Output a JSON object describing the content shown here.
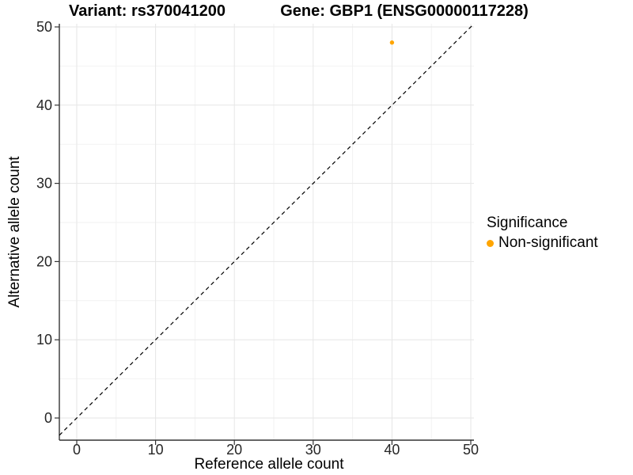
{
  "chart_data": {
    "type": "scatter",
    "titles": [
      "Variant: rs370041200",
      "Gene: GBP1 (ENSG00000117228)"
    ],
    "xlabel": "Reference allele count",
    "ylabel": "Alternative allele count",
    "xlim": [
      0,
      50
    ],
    "ylim": [
      0,
      50
    ],
    "xticks": [
      0,
      10,
      20,
      30,
      40,
      50
    ],
    "yticks": [
      0,
      10,
      20,
      30,
      40,
      50
    ],
    "minor_gridline_step": 5,
    "grid": true,
    "points": [
      {
        "x": 40,
        "y": 48,
        "series": "Non-significant",
        "color": "#FFA500"
      }
    ],
    "reference_line": {
      "type": "identity",
      "equation": "y = x",
      "style": "dashed",
      "color": "#000000"
    },
    "legend": {
      "title": "Significance",
      "position": "right",
      "entries": [
        {
          "label": "Non-significant",
          "color": "#FFA500"
        }
      ]
    }
  },
  "colors": {
    "background": "#FFFFFF",
    "grid_major": "#E6E6E6",
    "grid_minor": "#F2F2F2",
    "axis": "#333333",
    "tick_label": "#262626",
    "title": "#000000"
  }
}
